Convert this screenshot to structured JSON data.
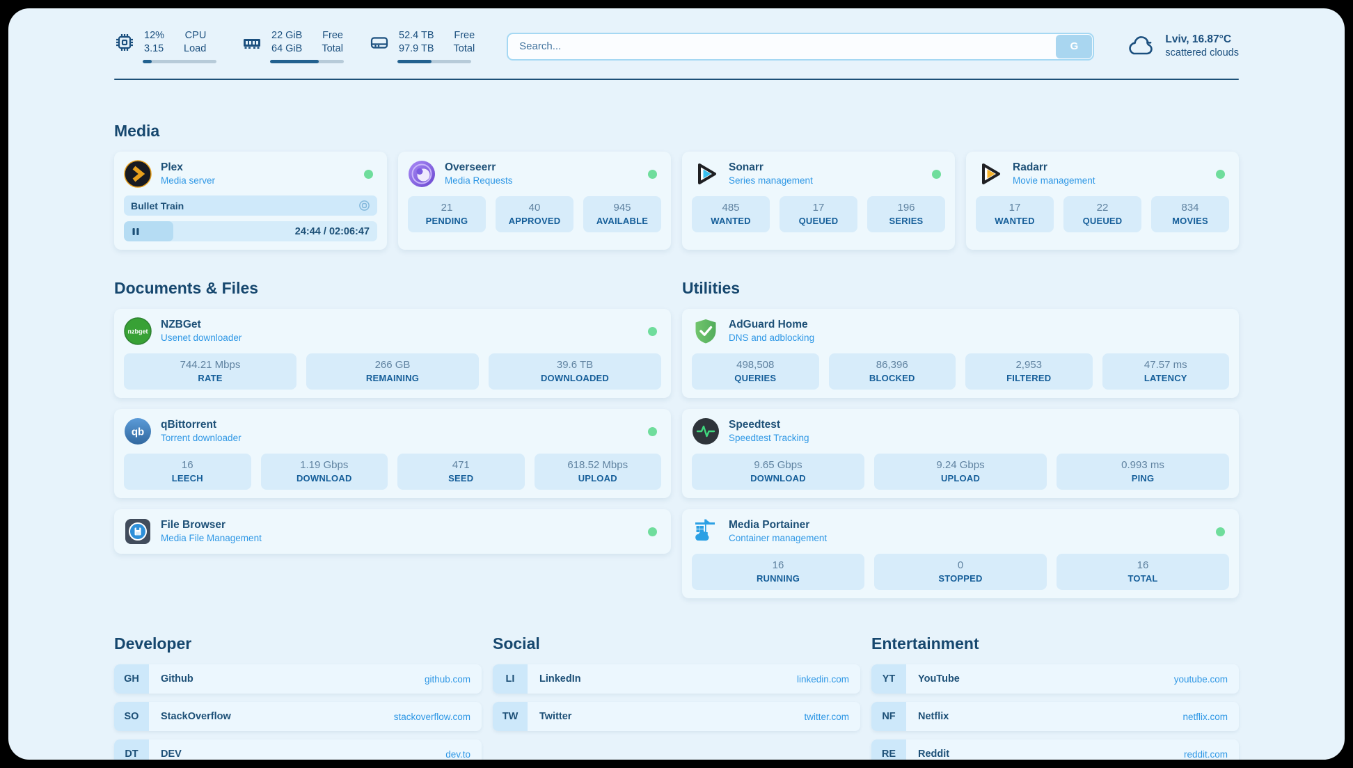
{
  "header": {
    "system_stats": [
      {
        "name": "cpu",
        "value_top": "12%",
        "value_bottom": "3.15",
        "label_top": "CPU",
        "label_bottom": "Load",
        "progress_pct": 12
      },
      {
        "name": "ram",
        "value_top": "22 GiB",
        "value_bottom": "64 GiB",
        "label_top": "Free",
        "label_bottom": "Total",
        "progress_pct": 66
      },
      {
        "name": "disk",
        "value_top": "52.4 TB",
        "value_bottom": "97.9 TB",
        "label_top": "Free",
        "label_bottom": "Total",
        "progress_pct": 46
      }
    ],
    "search": {
      "placeholder": "Search...",
      "button_label": "G"
    },
    "weather": {
      "location": "Lviv, 16.87°C",
      "condition": "scattered clouds"
    }
  },
  "sections": {
    "media": {
      "title": "Media",
      "plex": {
        "title": "Plex",
        "subtitle": "Media server",
        "status": "online",
        "now_playing": {
          "title": "Bullet Train",
          "time": "24:44 / 02:06:47",
          "progress_pct": 19.5
        }
      },
      "overseerr": {
        "title": "Overseerr",
        "subtitle": "Media Requests",
        "status": "online",
        "stats": [
          {
            "value": "21",
            "label": "PENDING"
          },
          {
            "value": "40",
            "label": "APPROVED"
          },
          {
            "value": "945",
            "label": "AVAILABLE"
          }
        ]
      },
      "sonarr": {
        "title": "Sonarr",
        "subtitle": "Series management",
        "status": "online",
        "stats": [
          {
            "value": "485",
            "label": "WANTED"
          },
          {
            "value": "17",
            "label": "QUEUED"
          },
          {
            "value": "196",
            "label": "SERIES"
          }
        ]
      },
      "radarr": {
        "title": "Radarr",
        "subtitle": "Movie management",
        "status": "online",
        "stats": [
          {
            "value": "17",
            "label": "WANTED"
          },
          {
            "value": "22",
            "label": "QUEUED"
          },
          {
            "value": "834",
            "label": "MOVIES"
          }
        ]
      }
    },
    "documents": {
      "title": "Documents & Files",
      "nzbget": {
        "title": "NZBGet",
        "subtitle": "Usenet downloader",
        "status": "online",
        "stats": [
          {
            "value": "744.21 Mbps",
            "label": "RATE"
          },
          {
            "value": "266 GB",
            "label": "REMAINING"
          },
          {
            "value": "39.6 TB",
            "label": "DOWNLOADED"
          }
        ]
      },
      "qbittorrent": {
        "title": "qBittorrent",
        "subtitle": "Torrent downloader",
        "status": "online",
        "stats": [
          {
            "value": "16",
            "label": "LEECH"
          },
          {
            "value": "1.19 Gbps",
            "label": "DOWNLOAD"
          },
          {
            "value": "471",
            "label": "SEED"
          },
          {
            "value": "618.52 Mbps",
            "label": "UPLOAD"
          }
        ]
      },
      "filebrowser": {
        "title": "File Browser",
        "subtitle": "Media File Management",
        "status": "online"
      }
    },
    "utilities": {
      "title": "Utilities",
      "adguard": {
        "title": "AdGuard Home",
        "subtitle": "DNS and adblocking",
        "stats": [
          {
            "value": "498,508",
            "label": "QUERIES"
          },
          {
            "value": "86,396",
            "label": "BLOCKED"
          },
          {
            "value": "2,953",
            "label": "FILTERED"
          },
          {
            "value": "47.57 ms",
            "label": "LATENCY"
          }
        ]
      },
      "speedtest": {
        "title": "Speedtest",
        "subtitle": "Speedtest Tracking",
        "stats": [
          {
            "value": "9.65 Gbps",
            "label": "DOWNLOAD"
          },
          {
            "value": "9.24 Gbps",
            "label": "UPLOAD"
          },
          {
            "value": "0.993 ms",
            "label": "PING"
          }
        ]
      },
      "portainer": {
        "title": "Media Portainer",
        "subtitle": "Container management",
        "status": "online",
        "stats": [
          {
            "value": "16",
            "label": "RUNNING"
          },
          {
            "value": "0",
            "label": "STOPPED"
          },
          {
            "value": "16",
            "label": "TOTAL"
          }
        ]
      }
    },
    "developer": {
      "title": "Developer",
      "links": [
        {
          "abbr": "GH",
          "name": "Github",
          "url": "github.com"
        },
        {
          "abbr": "SO",
          "name": "StackOverflow",
          "url": "stackoverflow.com"
        },
        {
          "abbr": "DT",
          "name": "DEV",
          "url": "dev.to"
        }
      ]
    },
    "social": {
      "title": "Social",
      "links": [
        {
          "abbr": "LI",
          "name": "LinkedIn",
          "url": "linkedin.com"
        },
        {
          "abbr": "TW",
          "name": "Twitter",
          "url": "twitter.com"
        }
      ]
    },
    "entertainment": {
      "title": "Entertainment",
      "links": [
        {
          "abbr": "YT",
          "name": "YouTube",
          "url": "youtube.com"
        },
        {
          "abbr": "NF",
          "name": "Netflix",
          "url": "netflix.com"
        },
        {
          "abbr": "RE",
          "name": "Reddit",
          "url": "reddit.com"
        }
      ]
    }
  },
  "colors": {
    "page_bg": "#e7f3fb",
    "card_bg": "#eef8fd",
    "stat_bg": "#d7ecfa",
    "accent_navy": "#1d5077",
    "accent_blue": "#2e97e5",
    "status_online": "#6fdd9c"
  }
}
